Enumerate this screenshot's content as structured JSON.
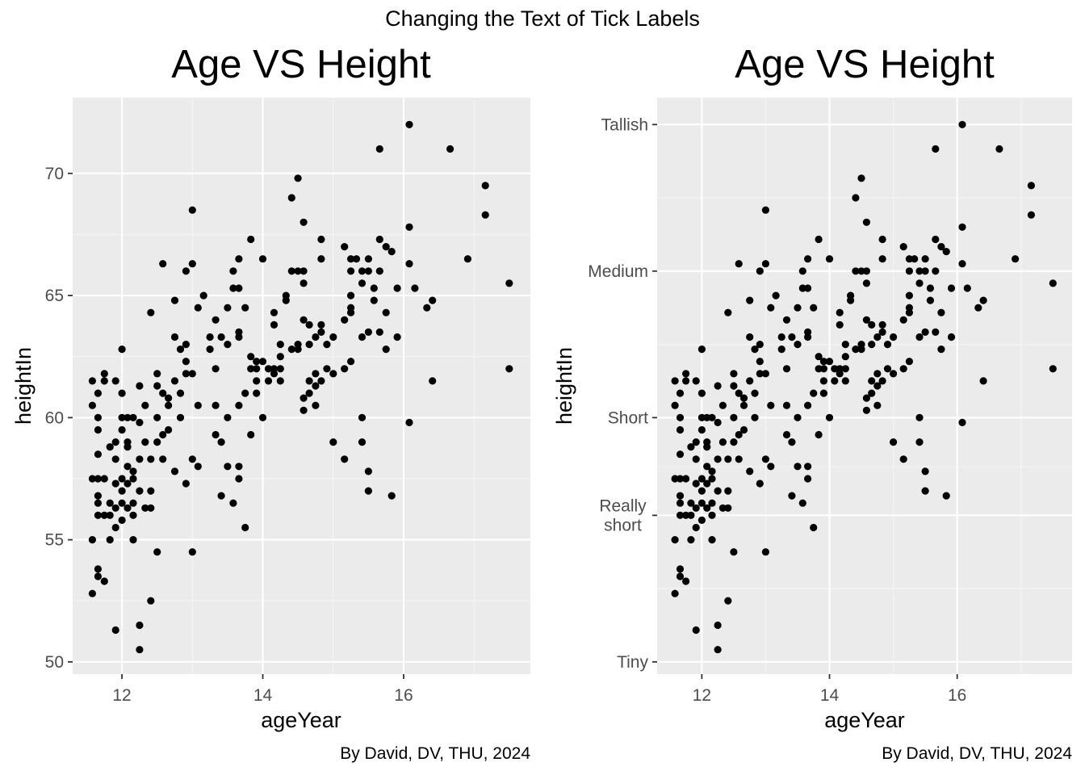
{
  "figure": {
    "suptitle": "Changing the Text of Tick Labels"
  },
  "style": {
    "panel_bg": "#ebebeb",
    "grid_major": "#ffffff",
    "grid_minor": "#f5f5f5",
    "point": "#000000",
    "tick_text": "#4d4d4d"
  },
  "chart_data": [
    {
      "type": "scatter",
      "title": "Age VS Height",
      "xlabel": "ageYear",
      "ylabel": "heightIn",
      "caption": "By David, DV, THU, 2024",
      "xlim": [
        11.3,
        17.8
      ],
      "ylim": [
        49.5,
        73.1
      ],
      "x_ticks": [
        {
          "value": 12,
          "label": "12"
        },
        {
          "value": 14,
          "label": "14"
        },
        {
          "value": 16,
          "label": "16"
        }
      ],
      "y_ticks": [
        {
          "value": 50,
          "label": "50"
        },
        {
          "value": 55,
          "label": "55"
        },
        {
          "value": 60,
          "label": "60"
        },
        {
          "value": 65,
          "label": "65"
        },
        {
          "value": 70,
          "label": "70"
        }
      ],
      "grid": true
    },
    {
      "type": "scatter",
      "title": "Age VS Height",
      "xlabel": "ageYear",
      "ylabel": "heightIn",
      "caption": "By David, DV, THU, 2024",
      "xlim": [
        11.3,
        17.8
      ],
      "ylim": [
        49.5,
        73.1
      ],
      "x_ticks": [
        {
          "value": 12,
          "label": "12"
        },
        {
          "value": 14,
          "label": "14"
        },
        {
          "value": 16,
          "label": "16"
        }
      ],
      "y_ticks": [
        {
          "value": 50,
          "label": "Tiny"
        },
        {
          "value": 56,
          "label": "Really\nshort"
        },
        {
          "value": 60,
          "label": "Short"
        },
        {
          "value": 66,
          "label": "Medium"
        },
        {
          "value": 72,
          "label": "Tallish"
        }
      ],
      "grid": true
    }
  ],
  "points": [
    [
      11.58,
      52.8
    ],
    [
      11.58,
      55.0
    ],
    [
      11.58,
      57.5
    ],
    [
      11.58,
      60.5
    ],
    [
      11.58,
      61.5
    ],
    [
      11.66,
      53.5
    ],
    [
      11.66,
      53.8
    ],
    [
      11.66,
      56.0
    ],
    [
      11.66,
      56.5
    ],
    [
      11.66,
      56.8
    ],
    [
      11.66,
      57.5
    ],
    [
      11.66,
      58.5
    ],
    [
      11.66,
      59.5
    ],
    [
      11.66,
      60.0
    ],
    [
      11.66,
      61.0
    ],
    [
      11.75,
      53.3
    ],
    [
      11.75,
      56.0
    ],
    [
      11.75,
      57.5
    ],
    [
      11.75,
      61.5
    ],
    [
      11.75,
      61.8
    ],
    [
      11.83,
      55.0
    ],
    [
      11.83,
      56.0
    ],
    [
      11.83,
      56.5
    ],
    [
      11.83,
      58.8
    ],
    [
      11.91,
      51.3
    ],
    [
      11.91,
      55.5
    ],
    [
      11.91,
      56.3
    ],
    [
      11.91,
      57.3
    ],
    [
      11.91,
      58.3
    ],
    [
      11.91,
      59.0
    ],
    [
      11.91,
      61.5
    ],
    [
      12.0,
      55.8
    ],
    [
      12.0,
      56.5
    ],
    [
      12.0,
      57.0
    ],
    [
      12.0,
      57.5
    ],
    [
      12.0,
      59.5
    ],
    [
      12.0,
      60.0
    ],
    [
      12.0,
      61.0
    ],
    [
      12.0,
      62.8
    ],
    [
      12.08,
      56.3
    ],
    [
      12.08,
      57.3
    ],
    [
      12.08,
      58.0
    ],
    [
      12.08,
      58.8
    ],
    [
      12.08,
      59.0
    ],
    [
      12.08,
      60.0
    ],
    [
      12.16,
      55.0
    ],
    [
      12.16,
      56.0
    ],
    [
      12.16,
      56.5
    ],
    [
      12.16,
      57.5
    ],
    [
      12.16,
      57.8
    ],
    [
      12.16,
      60.0
    ],
    [
      12.25,
      50.5
    ],
    [
      12.25,
      51.5
    ],
    [
      12.25,
      57.0
    ],
    [
      12.25,
      58.3
    ],
    [
      12.25,
      59.8
    ],
    [
      12.25,
      61.3
    ],
    [
      12.33,
      56.3
    ],
    [
      12.33,
      59.0
    ],
    [
      12.33,
      60.5
    ],
    [
      12.41,
      52.5
    ],
    [
      12.41,
      56.3
    ],
    [
      12.41,
      57.0
    ],
    [
      12.41,
      58.3
    ],
    [
      12.41,
      64.3
    ],
    [
      12.5,
      54.5
    ],
    [
      12.5,
      59.0
    ],
    [
      12.5,
      60.0
    ],
    [
      12.5,
      61.3
    ],
    [
      12.5,
      61.8
    ],
    [
      12.58,
      58.3
    ],
    [
      12.58,
      59.3
    ],
    [
      12.58,
      61.0
    ],
    [
      12.58,
      66.3
    ],
    [
      12.66,
      59.5
    ],
    [
      12.66,
      60.5
    ],
    [
      12.66,
      60.8
    ],
    [
      12.75,
      57.8
    ],
    [
      12.75,
      61.5
    ],
    [
      12.75,
      63.3
    ],
    [
      12.75,
      64.8
    ],
    [
      12.83,
      60.0
    ],
    [
      12.83,
      61.0
    ],
    [
      12.83,
      62.8
    ],
    [
      12.91,
      57.3
    ],
    [
      12.91,
      61.8
    ],
    [
      12.91,
      62.3
    ],
    [
      12.91,
      63.0
    ],
    [
      12.91,
      66.0
    ],
    [
      13.0,
      54.5
    ],
    [
      13.0,
      58.3
    ],
    [
      13.0,
      61.8
    ],
    [
      13.0,
      66.3
    ],
    [
      13.0,
      68.5
    ],
    [
      13.08,
      58.0
    ],
    [
      13.08,
      60.5
    ],
    [
      13.08,
      64.5
    ],
    [
      13.16,
      65.0
    ],
    [
      13.25,
      62.8
    ],
    [
      13.25,
      63.3
    ],
    [
      13.33,
      59.3
    ],
    [
      13.33,
      60.5
    ],
    [
      13.33,
      62.0
    ],
    [
      13.33,
      64.0
    ],
    [
      13.41,
      56.8
    ],
    [
      13.41,
      59.0
    ],
    [
      13.41,
      63.3
    ],
    [
      13.5,
      58.0
    ],
    [
      13.5,
      60.0
    ],
    [
      13.5,
      63.0
    ],
    [
      13.5,
      64.5
    ],
    [
      13.58,
      56.5
    ],
    [
      13.58,
      65.3
    ],
    [
      13.58,
      66.0
    ],
    [
      13.66,
      57.5
    ],
    [
      13.66,
      58.0
    ],
    [
      13.66,
      60.5
    ],
    [
      13.66,
      63.3
    ],
    [
      13.66,
      63.5
    ],
    [
      13.66,
      65.3
    ],
    [
      13.66,
      66.5
    ],
    [
      13.75,
      55.5
    ],
    [
      13.75,
      61.0
    ],
    [
      13.75,
      64.5
    ],
    [
      13.83,
      59.3
    ],
    [
      13.83,
      62.0
    ],
    [
      13.83,
      62.5
    ],
    [
      13.83,
      67.3
    ],
    [
      13.91,
      61.0
    ],
    [
      13.91,
      61.5
    ],
    [
      13.91,
      62.0
    ],
    [
      13.91,
      62.3
    ],
    [
      14.0,
      60.0
    ],
    [
      14.0,
      62.3
    ],
    [
      14.0,
      66.5
    ],
    [
      14.08,
      61.5
    ],
    [
      14.08,
      62.0
    ],
    [
      14.16,
      61.8
    ],
    [
      14.16,
      62.0
    ],
    [
      14.16,
      63.8
    ],
    [
      14.16,
      64.3
    ],
    [
      14.25,
      61.5
    ],
    [
      14.25,
      62.0
    ],
    [
      14.25,
      62.5
    ],
    [
      14.25,
      63.0
    ],
    [
      14.33,
      64.8
    ],
    [
      14.33,
      65.0
    ],
    [
      14.41,
      62.8
    ],
    [
      14.41,
      66.0
    ],
    [
      14.41,
      69.0
    ],
    [
      14.5,
      62.8
    ],
    [
      14.5,
      63.0
    ],
    [
      14.5,
      66.0
    ],
    [
      14.5,
      69.8
    ],
    [
      14.58,
      60.3
    ],
    [
      14.58,
      60.8
    ],
    [
      14.58,
      64.0
    ],
    [
      14.58,
      65.5
    ],
    [
      14.58,
      66.0
    ],
    [
      14.58,
      68.0
    ],
    [
      14.66,
      61.0
    ],
    [
      14.66,
      61.5
    ],
    [
      14.66,
      63.0
    ],
    [
      14.66,
      63.8
    ],
    [
      14.75,
      60.5
    ],
    [
      14.75,
      61.3
    ],
    [
      14.75,
      61.8
    ],
    [
      14.75,
      63.3
    ],
    [
      14.83,
      61.5
    ],
    [
      14.83,
      63.5
    ],
    [
      14.83,
      63.8
    ],
    [
      14.83,
      66.5
    ],
    [
      14.83,
      67.3
    ],
    [
      14.91,
      62.0
    ],
    [
      14.91,
      63.0
    ],
    [
      15.0,
      59.0
    ],
    [
      15.0,
      61.8
    ],
    [
      15.0,
      63.3
    ],
    [
      15.16,
      58.3
    ],
    [
      15.16,
      62.0
    ],
    [
      15.16,
      64.0
    ],
    [
      15.16,
      67.0
    ],
    [
      15.25,
      62.3
    ],
    [
      15.25,
      64.3
    ],
    [
      15.25,
      64.5
    ],
    [
      15.25,
      65.0
    ],
    [
      15.25,
      66.0
    ],
    [
      15.25,
      66.5
    ],
    [
      15.33,
      66.5
    ],
    [
      15.41,
      59.0
    ],
    [
      15.41,
      60.0
    ],
    [
      15.41,
      63.3
    ],
    [
      15.41,
      65.5
    ],
    [
      15.41,
      66.0
    ],
    [
      15.5,
      57.0
    ],
    [
      15.5,
      57.8
    ],
    [
      15.5,
      63.5
    ],
    [
      15.5,
      66.0
    ],
    [
      15.5,
      66.5
    ],
    [
      15.58,
      64.8
    ],
    [
      15.58,
      65.3
    ],
    [
      15.66,
      63.5
    ],
    [
      15.66,
      66.0
    ],
    [
      15.66,
      67.3
    ],
    [
      15.66,
      71.0
    ],
    [
      15.75,
      62.8
    ],
    [
      15.75,
      64.3
    ],
    [
      15.75,
      67.0
    ],
    [
      15.83,
      56.8
    ],
    [
      15.83,
      66.8
    ],
    [
      15.91,
      63.3
    ],
    [
      15.91,
      65.3
    ],
    [
      16.08,
      59.8
    ],
    [
      16.08,
      66.3
    ],
    [
      16.08,
      67.8
    ],
    [
      16.08,
      72.0
    ],
    [
      16.16,
      65.3
    ],
    [
      16.33,
      64.5
    ],
    [
      16.41,
      61.5
    ],
    [
      16.41,
      64.8
    ],
    [
      16.66,
      71.0
    ],
    [
      16.91,
      66.5
    ],
    [
      17.16,
      68.3
    ],
    [
      17.16,
      69.5
    ],
    [
      17.5,
      62.0
    ],
    [
      17.5,
      65.5
    ]
  ]
}
